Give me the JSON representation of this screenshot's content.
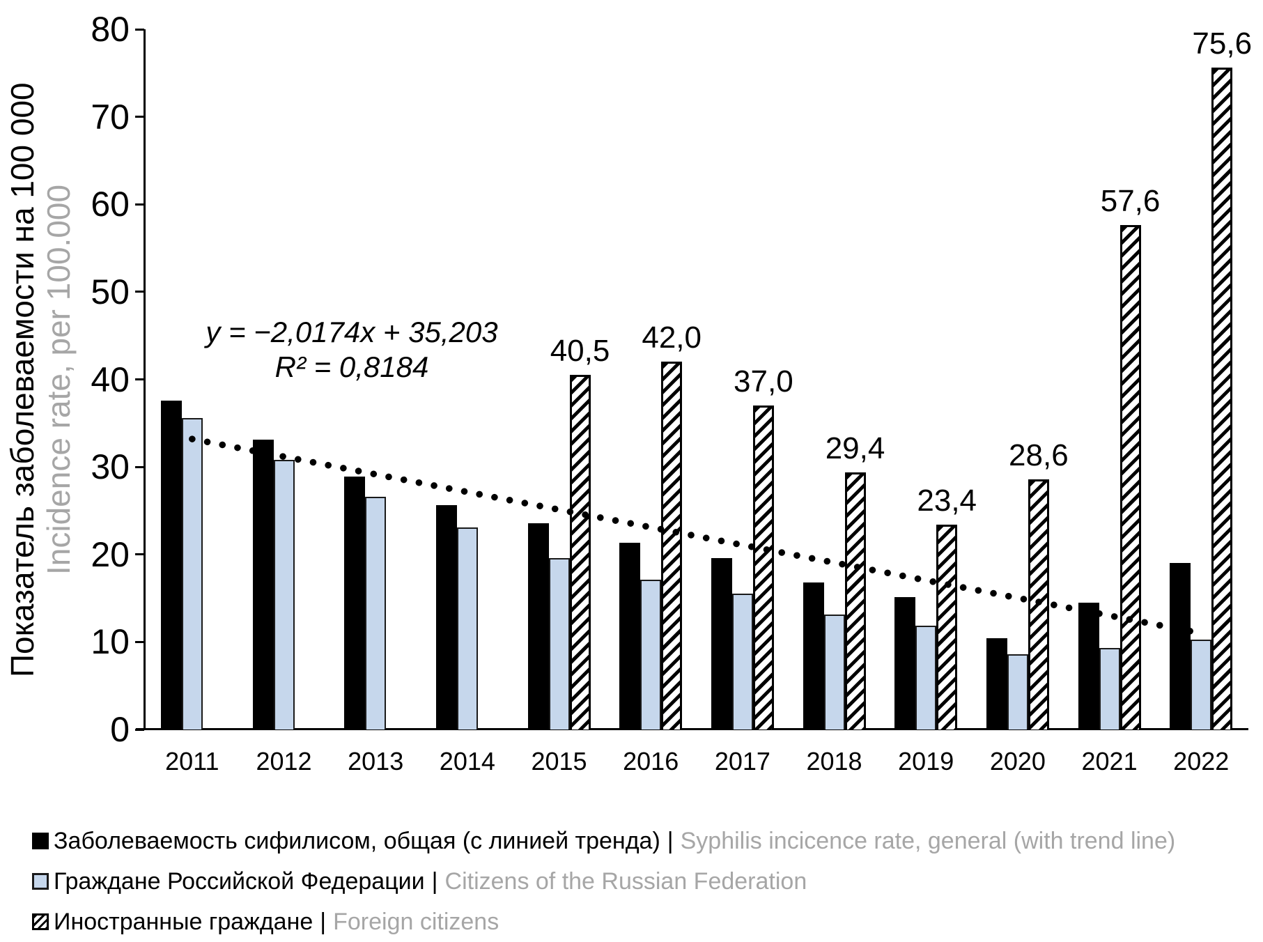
{
  "chart_data": {
    "type": "bar",
    "title": "",
    "categories": [
      "2011",
      "2012",
      "2013",
      "2014",
      "2015",
      "2016",
      "2017",
      "2018",
      "2019",
      "2020",
      "2021",
      "2022"
    ],
    "series": [
      {
        "name": "Заболеваемость сифилисом, общая (с линией тренда) | Syphilis incicence rate, general (with trend line)",
        "color": "#000000",
        "values": [
          37.6,
          33.1,
          28.9,
          25.6,
          23.6,
          21.3,
          19.6,
          16.8,
          15.1,
          10.4,
          14.5,
          19.0
        ]
      },
      {
        "name": "Граждане Российской Федерации | Citizens of the Russian Federation",
        "color": "#c6d7ec",
        "values": [
          35.6,
          30.8,
          26.6,
          23.1,
          19.6,
          17.1,
          15.5,
          13.1,
          11.9,
          8.6,
          9.3,
          10.3
        ]
      },
      {
        "name": "Иностранные граждане | Foreign citizens",
        "color": "hatched-diagonal",
        "values": [
          null,
          null,
          null,
          null,
          40.5,
          42.0,
          37.0,
          29.4,
          23.4,
          28.6,
          57.6,
          75.6
        ],
        "data_labels": [
          "",
          "",
          "",
          "",
          "40,5",
          "42,0",
          "37,0",
          "29,4",
          "23,4",
          "28,6",
          "57,6",
          "75,6"
        ]
      }
    ],
    "trendline": {
      "equation": "y = −2,0174x + 35,203",
      "r_squared": "R² = 0,8184",
      "slope": -2.0174,
      "intercept": 35.203,
      "style": "dotted-black"
    },
    "ylim": [
      0,
      80
    ],
    "yticks": [
      0,
      10,
      20,
      30,
      40,
      50,
      60,
      70,
      80
    ],
    "ylabel_ru": "Показатель заболеваемости на 100 000",
    "ylabel_en": "Incidence rate, per 100.000",
    "grid": "off",
    "legend_position": "bottom-left"
  },
  "legend": [
    {
      "marker": "black-square",
      "label_ru": "Заболеваемость сифилисом, общая (с линией тренда)",
      "separator": "|",
      "label_en": "Syphilis incicence rate, general (with trend line)"
    },
    {
      "marker": "blue-square",
      "label_ru": "Граждане Российской Федерации",
      "separator": "|",
      "label_en": "Citizens of the Russian Federation"
    },
    {
      "marker": "hatched-square",
      "label_ru": "Иностранные граждане",
      "separator": "|",
      "label_en": "Foreign citizens"
    }
  ],
  "colors": {
    "series_general": "#000000",
    "series_citizens_fill": "#c6d7ec",
    "series_citizens_border": "#1a1a1a",
    "hatch_foreground": "#000000",
    "hatch_background": "#ffffff",
    "secondary_text": "#a6a6a6",
    "axis": "#000000",
    "background": "#ffffff"
  }
}
